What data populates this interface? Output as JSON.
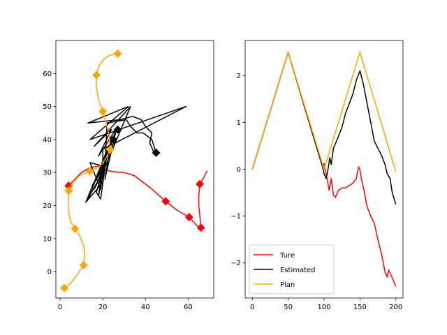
{
  "chart_data": [
    {
      "type": "line",
      "title": "",
      "xlabel": "",
      "ylabel": "",
      "xlim": [
        -2,
        72
      ],
      "ylim": [
        -8,
        70
      ],
      "xticks": [
        0,
        20,
        40,
        60
      ],
      "yticks": [
        0,
        10,
        20,
        30,
        40,
        50,
        60
      ],
      "grid": false,
      "series": [
        {
          "color": "#ff0000",
          "marker": "diamond",
          "points": [
            [
              4,
              26
            ],
            [
              7,
              28
            ],
            [
              10,
              30
            ],
            [
              14,
              31.5
            ],
            [
              18,
              32
            ],
            [
              21,
              31
            ],
            [
              24,
              30.3
            ],
            [
              30,
              30
            ],
            [
              35,
              29
            ],
            [
              38,
              27.5
            ],
            [
              43,
              25
            ],
            [
              49.5,
              21.3
            ],
            [
              55,
              18.5
            ],
            [
              60.5,
              16.5
            ],
            [
              64,
              14
            ],
            [
              66,
              13.3
            ],
            [
              65.5,
              17
            ],
            [
              65,
              20
            ],
            [
              65,
              23
            ],
            [
              65.5,
              26.5
            ],
            [
              67,
              28
            ],
            [
              68,
              29.5
            ],
            [
              69,
              30.5
            ]
          ],
          "markers": [
            [
              4,
              26
            ],
            [
              49.5,
              21.3
            ],
            [
              60.5,
              16.5
            ],
            [
              66,
              13.3
            ],
            [
              65.5,
              26.5
            ]
          ]
        },
        {
          "color": "#000000",
          "marker": "diamond",
          "points": [
            [
              44,
              36
            ],
            [
              42,
              39
            ],
            [
              43,
              42
            ],
            [
              40,
              44
            ],
            [
              38,
              46
            ],
            [
              34,
              47
            ],
            [
              28,
              46
            ],
            [
              13,
              45
            ],
            [
              32,
              50
            ],
            [
              14,
              40
            ],
            [
              59,
              50
            ],
            [
              20,
              37
            ],
            [
              20,
              30
            ],
            [
              33,
              50
            ],
            [
              16,
              38
            ],
            [
              24,
              43
            ],
            [
              18,
              35
            ],
            [
              27,
              44
            ],
            [
              13,
              22
            ],
            [
              19,
              29
            ],
            [
              16,
              25
            ],
            [
              20,
              31
            ],
            [
              15,
              26
            ],
            [
              21,
              33
            ],
            [
              17,
              24
            ],
            [
              19,
              22
            ],
            [
              22,
              36
            ],
            [
              17,
              28
            ],
            [
              19,
              32
            ],
            [
              24,
              40
            ],
            [
              21,
              28
            ],
            [
              26,
              42
            ],
            [
              21,
              34
            ],
            [
              19,
              25
            ],
            [
              14,
              33
            ],
            [
              20,
              32
            ],
            [
              18,
              23
            ],
            [
              23,
              38
            ],
            [
              12,
              21
            ],
            [
              20,
              27
            ],
            [
              21,
              31
            ],
            [
              22,
              45
            ],
            [
              31,
              46
            ],
            [
              33,
              44
            ],
            [
              36,
              42
            ],
            [
              39,
              42
            ],
            [
              43,
              40
            ],
            [
              45,
              36
            ]
          ],
          "markers": [
            [
              45,
              36
            ],
            [
              27,
              43
            ],
            [
              25,
              40
            ]
          ]
        },
        {
          "color": "#ffa500",
          "marker": "diamond",
          "points": [
            [
              2,
              -5
            ],
            [
              5,
              -3.5
            ],
            [
              8,
              -1
            ],
            [
              10,
              1
            ],
            [
              11,
              2
            ],
            [
              11.5,
              5
            ],
            [
              11,
              8
            ],
            [
              9,
              11
            ],
            [
              7,
              13
            ],
            [
              5,
              15
            ],
            [
              4,
              18
            ],
            [
              4,
              21
            ],
            [
              4,
              24.5
            ],
            [
              6,
              27
            ],
            [
              9,
              29
            ],
            [
              14,
              30.5
            ],
            [
              18,
              31.5
            ],
            [
              20,
              33
            ],
            [
              22,
              35
            ],
            [
              23.5,
              37
            ],
            [
              23,
              41
            ],
            [
              22,
              44
            ],
            [
              20,
              48.5
            ],
            [
              18,
              52
            ],
            [
              17,
              56
            ],
            [
              17,
              59.5
            ],
            [
              18,
              62
            ],
            [
              20,
              64
            ],
            [
              23,
              65.5
            ],
            [
              27,
              66
            ]
          ],
          "markers": [
            [
              2,
              -5
            ],
            [
              11,
              2
            ],
            [
              7,
              13
            ],
            [
              4,
              24.5
            ],
            [
              14,
              30.5
            ],
            [
              23.5,
              37
            ],
            [
              20,
              48.5
            ],
            [
              17,
              59.5
            ],
            [
              27,
              66
            ]
          ]
        }
      ]
    },
    {
      "type": "line",
      "title": "",
      "xlabel": "",
      "ylabel": "",
      "xlim": [
        -10,
        210
      ],
      "ylim": [
        -2.75,
        2.75
      ],
      "xticks": [
        0,
        50,
        100,
        150,
        200
      ],
      "yticks": [
        -2,
        -1,
        0,
        1,
        2
      ],
      "grid": false,
      "legend_position": "lower-left",
      "series": [
        {
          "name": "Ture",
          "color": "#ff0000",
          "points": [
            [
              0,
              0
            ],
            [
              50,
              2.5
            ],
            [
              85,
              0.7
            ],
            [
              92,
              0.35
            ],
            [
              97,
              0.1
            ],
            [
              100,
              0.12
            ],
            [
              102,
              -0.05
            ],
            [
              105,
              -0.25
            ],
            [
              107,
              -0.45
            ],
            [
              110,
              -0.2
            ],
            [
              113,
              -0.55
            ],
            [
              116,
              -0.6
            ],
            [
              120,
              -0.45
            ],
            [
              125,
              -0.4
            ],
            [
              130,
              -0.4
            ],
            [
              135,
              -0.35
            ],
            [
              140,
              -0.3
            ],
            [
              145,
              -0.2
            ],
            [
              148,
              0.05
            ],
            [
              150,
              0.0
            ],
            [
              152,
              -0.2
            ],
            [
              155,
              -0.4
            ],
            [
              160,
              -0.8
            ],
            [
              165,
              -1.0
            ],
            [
              170,
              -1.15
            ],
            [
              175,
              -1.5
            ],
            [
              180,
              -1.8
            ],
            [
              185,
              -2.2
            ],
            [
              188,
              -2.3
            ],
            [
              190,
              -2.15
            ],
            [
              193,
              -2.25
            ],
            [
              196,
              -2.35
            ],
            [
              200,
              -2.5
            ]
          ]
        },
        {
          "name": "Estimated",
          "color": "#000000",
          "points": [
            [
              0,
              0
            ],
            [
              50,
              2.5
            ],
            [
              90,
              0.45
            ],
            [
              95,
              0.2
            ],
            [
              98,
              0.05
            ],
            [
              100,
              -0.1
            ],
            [
              103,
              -0.2
            ],
            [
              106,
              0.05
            ],
            [
              108,
              0.25
            ],
            [
              110,
              0.1
            ],
            [
              113,
              0.45
            ],
            [
              116,
              0.55
            ],
            [
              120,
              0.7
            ],
            [
              125,
              0.9
            ],
            [
              130,
              1.2
            ],
            [
              135,
              1.4
            ],
            [
              140,
              1.6
            ],
            [
              145,
              1.9
            ],
            [
              150,
              2.1
            ],
            [
              155,
              1.8
            ],
            [
              160,
              1.4
            ],
            [
              165,
              1.0
            ],
            [
              170,
              0.6
            ],
            [
              175,
              0.45
            ],
            [
              180,
              0.3
            ],
            [
              185,
              0.1
            ],
            [
              188,
              -0.1
            ],
            [
              192,
              -0.2
            ],
            [
              195,
              -0.5
            ],
            [
              198,
              -0.65
            ],
            [
              200,
              -0.75
            ]
          ]
        },
        {
          "name": "Plan",
          "color": "#ffa500",
          "points": [
            [
              0,
              0
            ],
            [
              50,
              2.5
            ],
            [
              100,
              0
            ],
            [
              150,
              2.5
            ],
            [
              200,
              -0.05
            ]
          ]
        }
      ]
    }
  ]
}
